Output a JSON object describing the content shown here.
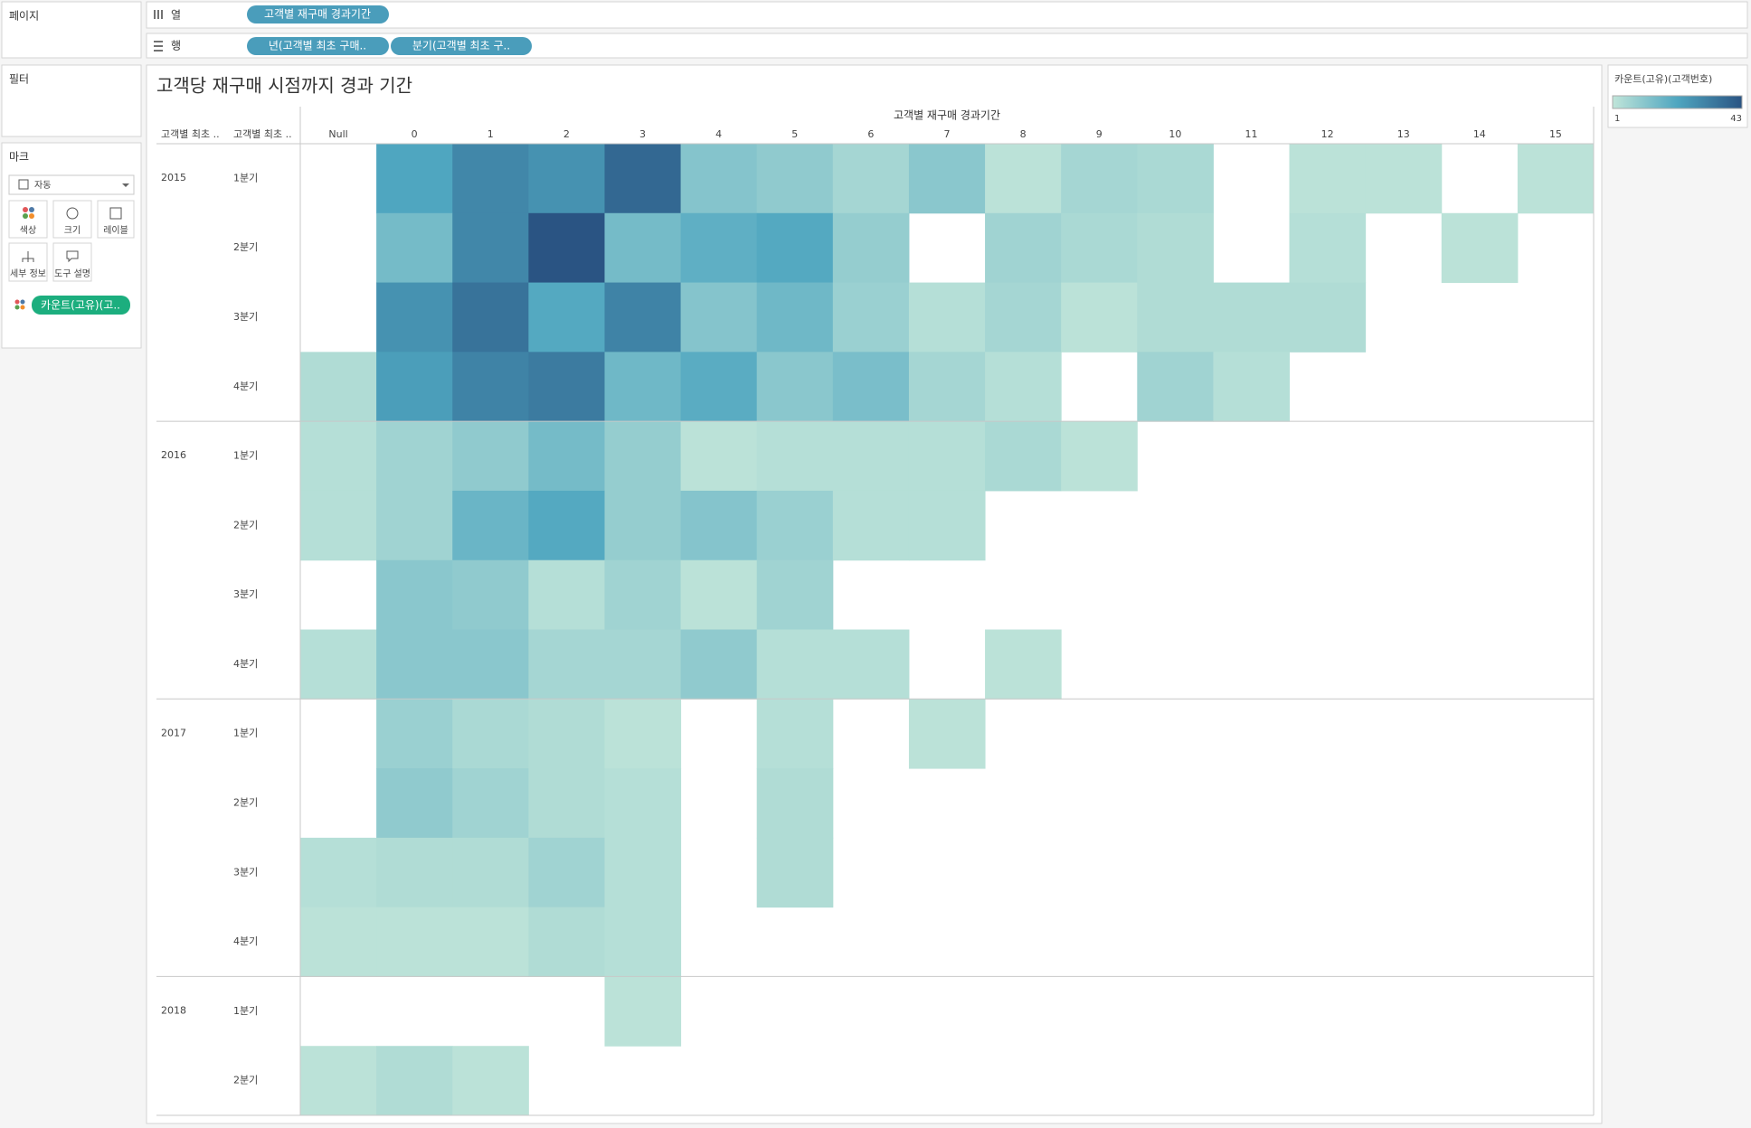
{
  "ui": {
    "pages": "페이지",
    "filters": "필터",
    "marks": "마크",
    "columns_shelf": {
      "label": "열",
      "pills": [
        "고객별 재구매 경과기간"
      ]
    },
    "rows_shelf": {
      "label": "행",
      "pills": [
        "년(고객별 최초 구매..",
        "분기(고객별 최초 구.."
      ]
    },
    "mark_type": "자동",
    "mark_buttons": [
      "색상",
      "크기",
      "레이블",
      "세부 정보",
      "도구 설명"
    ],
    "mark_pill": "카운트(고유)(고.."
  },
  "chart_data": {
    "type": "heatmap",
    "title": "고객당 재구매 시점까지 경과 기간",
    "x_label": "고객별 재구매 경과기간",
    "row_headers": [
      "고객별 최초 ..",
      "고객별 최초 .."
    ],
    "columns": [
      "Null",
      0,
      1,
      2,
      3,
      4,
      5,
      6,
      7,
      8,
      9,
      10,
      11,
      12,
      13,
      14,
      15
    ],
    "row_groups": [
      {
        "name": "2015",
        "rows": [
          "1분기",
          "2분기",
          "3분기",
          "4분기"
        ]
      },
      {
        "name": "2016",
        "rows": [
          "1분기",
          "2분기",
          "3분기",
          "4분기"
        ]
      },
      {
        "name": "2017",
        "rows": [
          "1분기",
          "2분기",
          "3분기",
          "4분기"
        ]
      },
      {
        "name": "2018",
        "rows": [
          "1분기",
          "2분기"
        ]
      }
    ],
    "values": [
      [
        null,
        22,
        30,
        27,
        38,
        12,
        10,
        6,
        11,
        2,
        6,
        5,
        null,
        2,
        2,
        null,
        2
      ],
      [
        null,
        15,
        30,
        43,
        15,
        19,
        21,
        9,
        null,
        7,
        5,
        4,
        null,
        3,
        null,
        2,
        null
      ],
      [
        null,
        27,
        35,
        21,
        31,
        12,
        16,
        8,
        3,
        6,
        2,
        4,
        4,
        4,
        null,
        null,
        null
      ],
      [
        4,
        24,
        31,
        33,
        16,
        20,
        11,
        14,
        6,
        3,
        null,
        7,
        3,
        null,
        null,
        null,
        null
      ],
      [
        3,
        7,
        10,
        15,
        9,
        2,
        3,
        3,
        3,
        5,
        2,
        null,
        null,
        null,
        null,
        null,
        null
      ],
      [
        3,
        7,
        17,
        21,
        9,
        12,
        8,
        3,
        3,
        null,
        null,
        null,
        null,
        null,
        null,
        null,
        null
      ],
      [
        null,
        11,
        10,
        3,
        7,
        2,
        7,
        null,
        null,
        null,
        null,
        null,
        null,
        null,
        null,
        null,
        null
      ],
      [
        3,
        11,
        11,
        6,
        6,
        10,
        3,
        3,
        null,
        2,
        null,
        null,
        null,
        null,
        null,
        null,
        null
      ],
      [
        null,
        8,
        5,
        4,
        2,
        null,
        3,
        null,
        2,
        null,
        null,
        null,
        null,
        null,
        null,
        null,
        null
      ],
      [
        null,
        10,
        7,
        4,
        3,
        null,
        4,
        null,
        null,
        null,
        null,
        null,
        null,
        null,
        null,
        null,
        null
      ],
      [
        3,
        4,
        4,
        7,
        3,
        null,
        4,
        null,
        null,
        null,
        null,
        null,
        null,
        null,
        null,
        null,
        null
      ],
      [
        2,
        2,
        2,
        4,
        3,
        null,
        null,
        null,
        null,
        null,
        null,
        null,
        null,
        null,
        null,
        null,
        null
      ],
      [
        null,
        null,
        null,
        null,
        2,
        null,
        null,
        null,
        null,
        null,
        null,
        null,
        null,
        null,
        null,
        null,
        null
      ],
      [
        2,
        4,
        2,
        null,
        null,
        null,
        null,
        null,
        null,
        null,
        null,
        null,
        null,
        null,
        null,
        null,
        null
      ]
    ],
    "legend": {
      "title": "카운트(고유)(고객번호)",
      "colorlim": [
        1,
        43
      ]
    },
    "colors": [
      "#c0e5d9",
      "#4fa6c0",
      "#2a5483"
    ]
  }
}
